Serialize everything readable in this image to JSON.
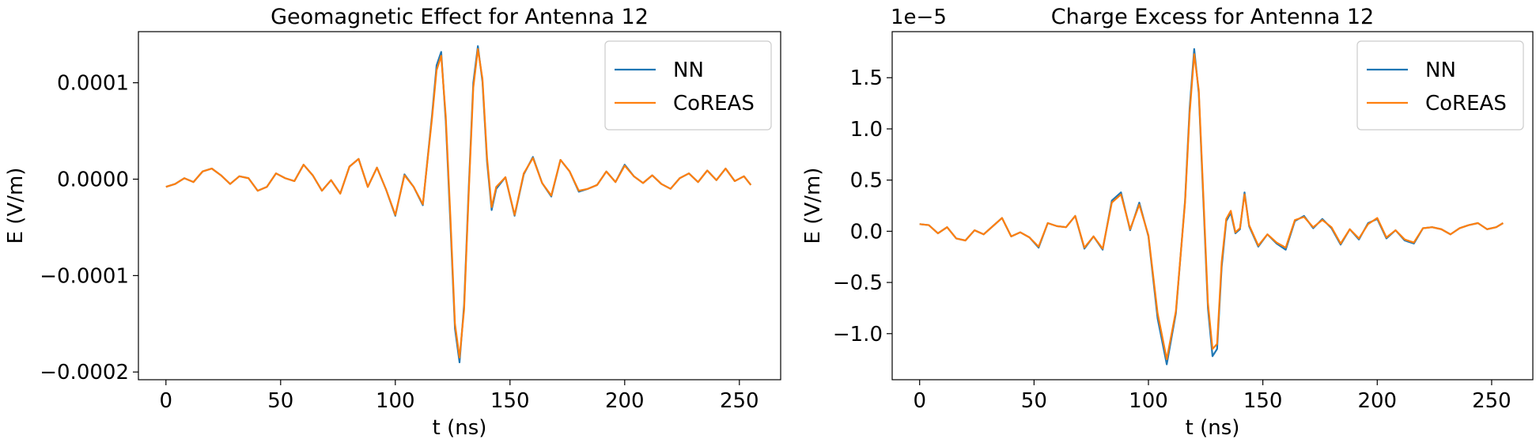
{
  "chart_data": [
    {
      "type": "line",
      "title": "Geomagnetic Effect for Antenna 12",
      "xlabel": "t (ns)",
      "ylabel": "E (V/m)",
      "xlim": [
        -12,
        268
      ],
      "ylim": [
        -0.000208,
        0.000153
      ],
      "xticks": [
        0,
        50,
        100,
        150,
        200,
        250
      ],
      "xtick_labels": [
        "0",
        "50",
        "100",
        "150",
        "200",
        "250"
      ],
      "yticks": [
        -0.0002,
        -0.0001,
        0.0,
        0.0001
      ],
      "ytick_labels": [
        "−0.0002",
        "−0.0001",
        "0.0000",
        "0.0001"
      ],
      "offset_text": "",
      "legend_position": "top-right",
      "series": [
        {
          "name": "NN",
          "color": "#1f77b4",
          "x": [
            0,
            4,
            8,
            12,
            16,
            20,
            24,
            28,
            32,
            36,
            40,
            44,
            48,
            52,
            56,
            60,
            64,
            68,
            72,
            76,
            80,
            84,
            88,
            92,
            96,
            100,
            104,
            108,
            112,
            116,
            118,
            120,
            122,
            124,
            126,
            128,
            130,
            132,
            134,
            136,
            138,
            140,
            142,
            144,
            148,
            152,
            156,
            160,
            164,
            168,
            172,
            176,
            180,
            184,
            188,
            192,
            196,
            200,
            204,
            208,
            212,
            216,
            220,
            224,
            228,
            232,
            236,
            240,
            244,
            248,
            252,
            255
          ],
          "y": [
            -8e-06,
            -5e-06,
            1e-06,
            -3e-06,
            8e-06,
            1.1e-05,
            4e-06,
            -5e-06,
            3e-06,
            1e-06,
            -1.2e-05,
            -8e-06,
            6e-06,
            1e-06,
            -2e-06,
            1.5e-05,
            4e-06,
            -1.2e-05,
            -1e-06,
            -1.5e-05,
            1.3e-05,
            2.1e-05,
            -8e-06,
            1.2e-05,
            -1.1e-05,
            -3.8e-05,
            5e-06,
            -8e-06,
            -2.7e-05,
            6.6e-05,
            0.000118,
            0.000132,
            6e-05,
            -4.5e-05,
            -0.000155,
            -0.00019,
            -0.00013,
            -1e-05,
            0.0001,
            0.000138,
            0.000101,
            1.8e-05,
            -3.2e-05,
            -1e-05,
            2e-06,
            -3.8e-05,
            5e-06,
            2.3e-05,
            -4e-06,
            -1.8e-05,
            2e-05,
            8e-06,
            -1.3e-05,
            -1e-05,
            -6e-06,
            8e-06,
            -3e-06,
            1.5e-05,
            3e-06,
            -4e-06,
            4e-06,
            -5e-06,
            -1e-05,
            1e-06,
            6e-06,
            -3e-06,
            9e-06,
            -1e-06,
            1.1e-05,
            -2e-06,
            3e-06,
            -6e-06
          ]
        },
        {
          "name": "CoREAS",
          "color": "#ff7f0e",
          "x": [
            0,
            4,
            8,
            12,
            16,
            20,
            24,
            28,
            32,
            36,
            40,
            44,
            48,
            52,
            56,
            60,
            64,
            68,
            72,
            76,
            80,
            84,
            88,
            92,
            96,
            100,
            104,
            108,
            112,
            116,
            118,
            120,
            122,
            124,
            126,
            128,
            130,
            132,
            134,
            136,
            138,
            140,
            142,
            144,
            148,
            152,
            156,
            160,
            164,
            168,
            172,
            176,
            180,
            184,
            188,
            192,
            196,
            200,
            204,
            208,
            212,
            216,
            220,
            224,
            228,
            232,
            236,
            240,
            244,
            248,
            252,
            255
          ],
          "y": [
            -8e-06,
            -5e-06,
            1e-06,
            -3e-06,
            8e-06,
            1.1e-05,
            4e-06,
            -5e-06,
            3e-06,
            1e-06,
            -1.2e-05,
            -8e-06,
            6e-06,
            1e-06,
            -2e-06,
            1.5e-05,
            4e-06,
            -1.2e-05,
            -1e-06,
            -1.5e-05,
            1.3e-05,
            2.1e-05,
            -8e-06,
            1.2e-05,
            -1.1e-05,
            -3.7e-05,
            4e-06,
            -8e-06,
            -2.6e-05,
            6.3e-05,
            0.000113,
            0.000128,
            6.5e-05,
            -3.8e-05,
            -0.00015,
            -0.000185,
            -0.000135,
            -1.5e-05,
            9.5e-05,
            0.000135,
            0.000104,
            2.2e-05,
            -2.9e-05,
            -8e-06,
            2e-06,
            -3.7e-05,
            6e-06,
            2.2e-05,
            -4e-06,
            -1.7e-05,
            2e-05,
            8e-06,
            -1.2e-05,
            -1e-05,
            -6e-06,
            8e-06,
            -3e-06,
            1.4e-05,
            3e-06,
            -4e-06,
            4e-06,
            -5e-06,
            -1e-05,
            1e-06,
            6e-06,
            -3e-06,
            9e-06,
            -1e-06,
            1.1e-05,
            -2e-06,
            3e-06,
            -6e-06
          ]
        }
      ]
    },
    {
      "type": "line",
      "title": "Charge Excess for Antenna 12",
      "xlabel": "t (ns)",
      "ylabel": "E (V/m)",
      "xlim": [
        -12,
        268
      ],
      "ylim": [
        -1.45,
        1.95
      ],
      "xticks": [
        0,
        50,
        100,
        150,
        200,
        250
      ],
      "xtick_labels": [
        "0",
        "50",
        "100",
        "150",
        "200",
        "250"
      ],
      "yticks": [
        -1.0,
        -0.5,
        0.0,
        0.5,
        1.0,
        1.5
      ],
      "ytick_labels": [
        "−1.0",
        "−0.5",
        "0.0",
        "0.5",
        "1.0",
        "1.5"
      ],
      "offset_text": "1e−5",
      "legend_position": "top-right",
      "series": [
        {
          "name": "NN",
          "color": "#1f77b4",
          "x": [
            0,
            4,
            8,
            12,
            16,
            20,
            24,
            28,
            32,
            36,
            40,
            44,
            48,
            52,
            56,
            60,
            64,
            68,
            72,
            76,
            80,
            84,
            88,
            92,
            96,
            100,
            104,
            108,
            112,
            116,
            118,
            120,
            122,
            124,
            126,
            128,
            130,
            132,
            134,
            136,
            138,
            140,
            142,
            144,
            148,
            152,
            156,
            160,
            164,
            168,
            172,
            176,
            180,
            184,
            188,
            192,
            196,
            200,
            204,
            208,
            212,
            216,
            220,
            224,
            228,
            232,
            236,
            240,
            244,
            248,
            252,
            255
          ],
          "y": [
            0.07,
            0.06,
            -0.02,
            0.04,
            -0.07,
            -0.09,
            0.01,
            -0.03,
            0.05,
            0.13,
            -0.05,
            -0.01,
            -0.06,
            -0.16,
            0.08,
            0.05,
            0.04,
            0.15,
            -0.17,
            -0.05,
            -0.18,
            0.3,
            0.38,
            0.01,
            0.28,
            -0.05,
            -0.85,
            -1.3,
            -0.8,
            0.3,
            1.2,
            1.78,
            1.35,
            0.3,
            -0.75,
            -1.22,
            -1.15,
            -0.35,
            0.1,
            0.18,
            -0.02,
            0.02,
            0.38,
            0.05,
            -0.15,
            -0.03,
            -0.12,
            -0.18,
            0.1,
            0.15,
            0.03,
            0.12,
            0.03,
            -0.13,
            0.02,
            -0.08,
            0.08,
            0.12,
            -0.07,
            0.01,
            -0.09,
            -0.12,
            0.03,
            0.04,
            0.02,
            -0.03,
            0.03,
            0.06,
            0.08,
            0.02,
            0.04,
            0.08
          ]
        },
        {
          "name": "CoREAS",
          "color": "#ff7f0e",
          "x": [
            0,
            4,
            8,
            12,
            16,
            20,
            24,
            28,
            32,
            36,
            40,
            44,
            48,
            52,
            56,
            60,
            64,
            68,
            72,
            76,
            80,
            84,
            88,
            92,
            96,
            100,
            104,
            108,
            112,
            116,
            118,
            120,
            122,
            124,
            126,
            128,
            130,
            132,
            134,
            136,
            138,
            140,
            142,
            144,
            148,
            152,
            156,
            160,
            164,
            168,
            172,
            176,
            180,
            184,
            188,
            192,
            196,
            200,
            204,
            208,
            212,
            216,
            220,
            224,
            228,
            232,
            236,
            240,
            244,
            248,
            252,
            255
          ],
          "y": [
            0.07,
            0.06,
            -0.02,
            0.04,
            -0.07,
            -0.09,
            0.01,
            -0.03,
            0.05,
            0.13,
            -0.05,
            -0.01,
            -0.06,
            -0.15,
            0.08,
            0.05,
            0.04,
            0.15,
            -0.16,
            -0.05,
            -0.17,
            0.28,
            0.36,
            0.02,
            0.26,
            -0.04,
            -0.8,
            -1.25,
            -0.78,
            0.28,
            1.15,
            1.73,
            1.38,
            0.35,
            -0.7,
            -1.15,
            -1.1,
            -0.3,
            0.12,
            0.2,
            -0.01,
            0.03,
            0.36,
            0.06,
            -0.14,
            -0.03,
            -0.11,
            -0.16,
            0.11,
            0.14,
            0.04,
            0.11,
            0.04,
            -0.12,
            0.02,
            -0.07,
            0.07,
            0.13,
            -0.06,
            0.01,
            -0.08,
            -0.11,
            0.03,
            0.04,
            0.02,
            -0.03,
            0.03,
            0.06,
            0.08,
            0.02,
            0.04,
            0.08
          ]
        }
      ]
    }
  ]
}
